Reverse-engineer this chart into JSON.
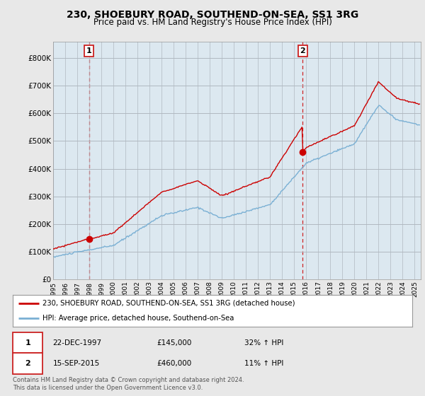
{
  "title": "230, SHOEBURY ROAD, SOUTHEND-ON-SEA, SS1 3RG",
  "subtitle": "Price paid vs. HM Land Registry's House Price Index (HPI)",
  "ylim": [
    0,
    860000
  ],
  "yticks": [
    0,
    100000,
    200000,
    300000,
    400000,
    500000,
    600000,
    700000,
    800000
  ],
  "ytick_labels": [
    "£0",
    "£100K",
    "£200K",
    "£300K",
    "£400K",
    "£500K",
    "£600K",
    "£700K",
    "£800K"
  ],
  "xlim_start": 1995.0,
  "xlim_end": 2025.5,
  "sale1_x": 1997.97,
  "sale1_y": 145000,
  "sale2_x": 2015.71,
  "sale2_y": 460000,
  "sale1_date": "22-DEC-1997",
  "sale1_price": "£145,000",
  "sale1_hpi": "32% ↑ HPI",
  "sale2_date": "15-SEP-2015",
  "sale2_price": "£460,000",
  "sale2_hpi": "11% ↑ HPI",
  "line_color_red": "#cc0000",
  "line_color_blue": "#7ab0d4",
  "background_color": "#e8e8e8",
  "plot_bg_color": "#dce8f0",
  "grid_color": "#b0b8c0",
  "legend_label_red": "230, SHOEBURY ROAD, SOUTHEND-ON-SEA, SS1 3RG (detached house)",
  "legend_label_blue": "HPI: Average price, detached house, Southend-on-Sea",
  "footer": "Contains HM Land Registry data © Crown copyright and database right 2024.\nThis data is licensed under the Open Government Licence v3.0.",
  "title_fontsize": 10,
  "subtitle_fontsize": 8.5
}
